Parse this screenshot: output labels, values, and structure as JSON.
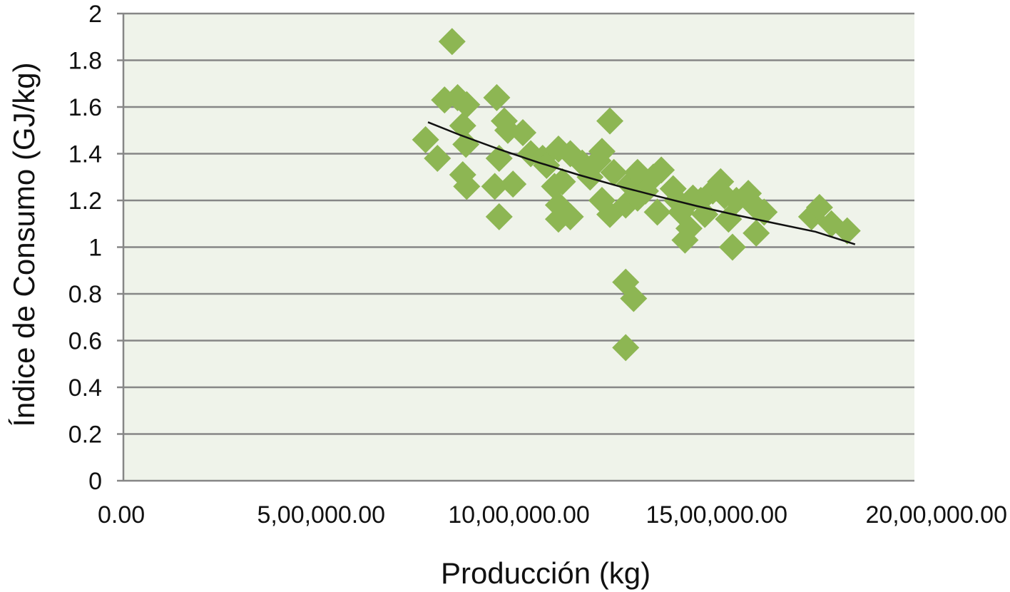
{
  "chart_data": {
    "type": "scatter",
    "title": "",
    "xlabel": "Producción (kg)",
    "ylabel": "Índice de Consumo (GJ/kg)",
    "xlim": [
      0,
      2000000
    ],
    "ylim": [
      0,
      2
    ],
    "x_ticks": [
      {
        "value": 0,
        "label": "0.00"
      },
      {
        "value": 500000,
        "label": "5,00,000.00"
      },
      {
        "value": 1000000,
        "label": "10,00,000.00"
      },
      {
        "value": 1500000,
        "label": "15,00,000.00"
      },
      {
        "value": 2000000,
        "label": "20,00,000.00"
      }
    ],
    "y_ticks": [
      {
        "value": 0,
        "label": "0"
      },
      {
        "value": 0.2,
        "label": "0.2"
      },
      {
        "value": 0.4,
        "label": "0.4"
      },
      {
        "value": 0.6,
        "label": "0.6"
      },
      {
        "value": 0.8,
        "label": "0.8"
      },
      {
        "value": 1,
        "label": "1"
      },
      {
        "value": 1.2,
        "label": "1.2"
      },
      {
        "value": 1.4,
        "label": "1.4"
      },
      {
        "value": 1.6,
        "label": "1.6"
      },
      {
        "value": 1.8,
        "label": "1.8"
      },
      {
        "value": 2,
        "label": "2"
      }
    ],
    "grid": "horizontal",
    "legend": "none",
    "colors": {
      "plot_bg": "#eff3ea",
      "marker": "#8db653",
      "grid": "#868686",
      "trend": "#111111"
    },
    "series": [
      {
        "marker": "diamond",
        "points": [
          [
            831000,
            1.88
          ],
          [
            764000,
            1.46
          ],
          [
            794000,
            1.38
          ],
          [
            812000,
            1.63
          ],
          [
            845000,
            1.64
          ],
          [
            858000,
            1.52
          ],
          [
            868000,
            1.61
          ],
          [
            866000,
            1.44
          ],
          [
            858000,
            1.31
          ],
          [
            868000,
            1.26
          ],
          [
            939000,
            1.26
          ],
          [
            944000,
            1.64
          ],
          [
            950000,
            1.38
          ],
          [
            963000,
            1.54
          ],
          [
            972000,
            1.5
          ],
          [
            985000,
            1.27
          ],
          [
            950000,
            1.13
          ],
          [
            1010000,
            1.49
          ],
          [
            1030000,
            1.4
          ],
          [
            1060000,
            1.38
          ],
          [
            1070000,
            1.35
          ],
          [
            1100000,
            1.42
          ],
          [
            1110000,
            1.28
          ],
          [
            1130000,
            1.4
          ],
          [
            1090000,
            1.26
          ],
          [
            1100000,
            1.18
          ],
          [
            1100000,
            1.12
          ],
          [
            1130000,
            1.13
          ],
          [
            1160000,
            1.36
          ],
          [
            1180000,
            1.3
          ],
          [
            1210000,
            1.41
          ],
          [
            1200000,
            1.37
          ],
          [
            1230000,
            1.54
          ],
          [
            1210000,
            1.2
          ],
          [
            1230000,
            1.14
          ],
          [
            1240000,
            1.32
          ],
          [
            1270000,
            1.18
          ],
          [
            1280000,
            1.27
          ],
          [
            1300000,
            1.21
          ],
          [
            1300000,
            1.32
          ],
          [
            1320000,
            1.24
          ],
          [
            1340000,
            1.3
          ],
          [
            1360000,
            1.33
          ],
          [
            1350000,
            1.15
          ],
          [
            1390000,
            1.25
          ],
          [
            1400000,
            1.2
          ],
          [
            1410000,
            1.15
          ],
          [
            1420000,
            1.03
          ],
          [
            1430000,
            1.08
          ],
          [
            1440000,
            1.21
          ],
          [
            1460000,
            1.2
          ],
          [
            1470000,
            1.14
          ],
          [
            1490000,
            1.24
          ],
          [
            1510000,
            1.28
          ],
          [
            1520000,
            1.22
          ],
          [
            1530000,
            1.12
          ],
          [
            1550000,
            1.2
          ],
          [
            1580000,
            1.23
          ],
          [
            1600000,
            1.17
          ],
          [
            1620000,
            1.15
          ],
          [
            1540000,
            1.0
          ],
          [
            1600000,
            1.06
          ],
          [
            1740000,
            1.13
          ],
          [
            1760000,
            1.17
          ],
          [
            1790000,
            1.1
          ],
          [
            1830000,
            1.07
          ],
          [
            1270000,
            0.85
          ],
          [
            1290000,
            0.78
          ],
          [
            1270000,
            0.57
          ]
        ]
      }
    ],
    "trendline": {
      "points": [
        [
          770000,
          1.535
        ],
        [
          850000,
          1.481
        ],
        [
          950000,
          1.419
        ],
        [
          1050000,
          1.362
        ],
        [
          1150000,
          1.31
        ],
        [
          1250000,
          1.262
        ],
        [
          1350000,
          1.218
        ],
        [
          1450000,
          1.176
        ],
        [
          1550000,
          1.137
        ],
        [
          1650000,
          1.101
        ],
        [
          1750000,
          1.066
        ],
        [
          1850000,
          1.012
        ]
      ]
    }
  }
}
